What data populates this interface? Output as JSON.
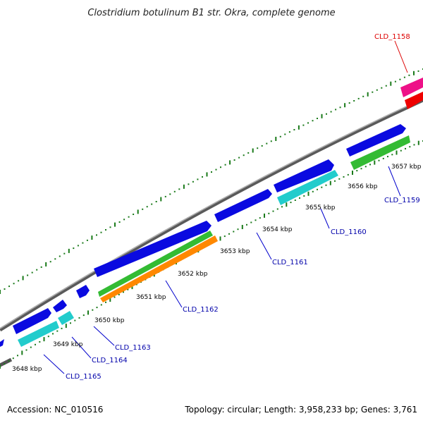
{
  "title": "Clostridium botulinum B1 str. Okra, complete genome",
  "footer": {
    "accession": "Accession: NC_010516",
    "topology": "Topology: circular; Length: 3,958,233 bp; Genes: 3,761"
  },
  "colors": {
    "backbone": "#888888",
    "tick": "#1a7a1a",
    "gene_label": "#0000aa",
    "gene_label_highlight": "#dd0000",
    "leader": "#0000cc",
    "leader_highlight": "#dd0000",
    "blue": "#0a0ae0",
    "cyan": "#22cccc",
    "green": "#33bb33",
    "orange": "#ff8800",
    "magenta": "#ee1188",
    "red": "#ee0000"
  },
  "kbp_labels": [
    "3648 kbp",
    "3649 kbp",
    "3650 kbp",
    "3651 kbp",
    "3652 kbp",
    "3653 kbp",
    "3654 kbp",
    "3655 kbp",
    "3656 kbp",
    "3657 kbp"
  ],
  "gene_labels": [
    {
      "text": "CLD_1158",
      "highlight": true
    },
    {
      "text": "CLD_1159",
      "highlight": false
    },
    {
      "text": "CLD_1160",
      "highlight": false
    },
    {
      "text": "CLD_1161",
      "highlight": false
    },
    {
      "text": "CLD_1162",
      "highlight": false
    },
    {
      "text": "CLD_1163",
      "highlight": false
    },
    {
      "text": "CLD_1164",
      "highlight": false
    },
    {
      "text": "CLD_1165",
      "highlight": false
    }
  ]
}
